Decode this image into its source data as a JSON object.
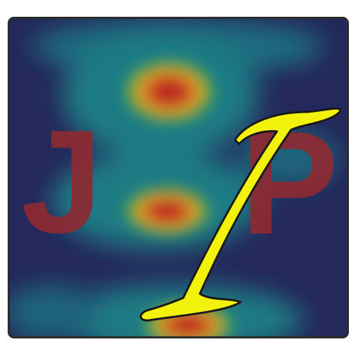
{
  "logo": {
    "letter_left": "J",
    "letter_right": "P",
    "slash_glyph": "I",
    "colors": {
      "background": "#25285a",
      "letters": "#8e2a32",
      "slash_fill": "#f2f20c",
      "slash_outline": "#1a1a1a",
      "frame": "#2b2b2b",
      "heat_hot": "#b01f24",
      "heat_warm": "#e8a020",
      "heat_mid": "#2e9e3a",
      "heat_cool": "#1f8f8f"
    },
    "background_icon": "heatmap-background-icon",
    "slash_icon": "italic-i-slash-icon"
  }
}
